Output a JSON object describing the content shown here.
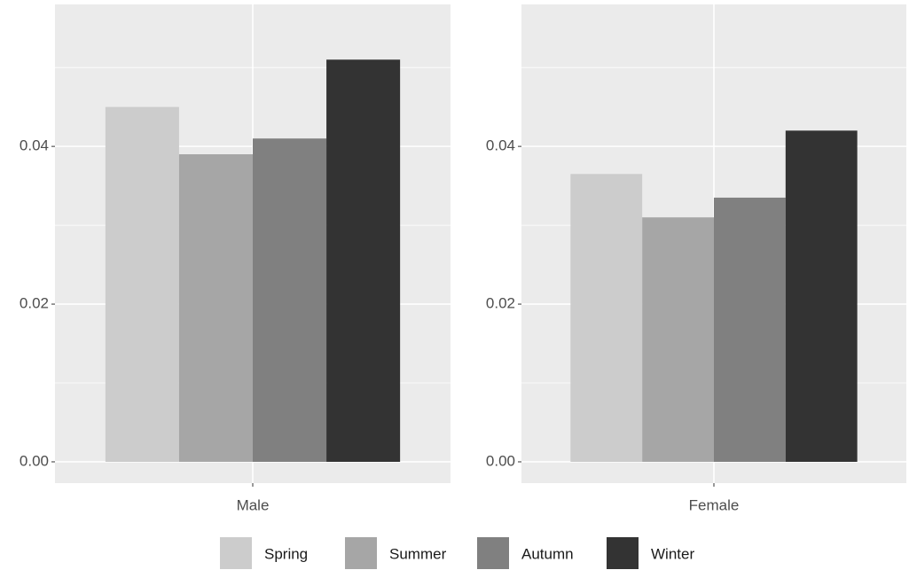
{
  "chart_data": {
    "type": "bar",
    "categories": [
      "Male",
      "Female"
    ],
    "series": [
      {
        "name": "Spring",
        "color": "#cccccc",
        "values": [
          0.045,
          0.0365
        ]
      },
      {
        "name": "Summer",
        "color": "#a6a6a6",
        "values": [
          0.039,
          0.031
        ]
      },
      {
        "name": "Autumn",
        "color": "#808080",
        "values": [
          0.041,
          0.0335
        ]
      },
      {
        "name": "Winter",
        "color": "#333333",
        "values": [
          0.051,
          0.042
        ]
      }
    ],
    "ylim": [
      -0.0027,
      0.058
    ],
    "yticks": [
      {
        "value": 0,
        "label": "0.00"
      },
      {
        "value": 0.02,
        "label": "0.02"
      },
      {
        "value": 0.04,
        "label": "0.04"
      }
    ],
    "grid": true,
    "legend": "bottom"
  }
}
